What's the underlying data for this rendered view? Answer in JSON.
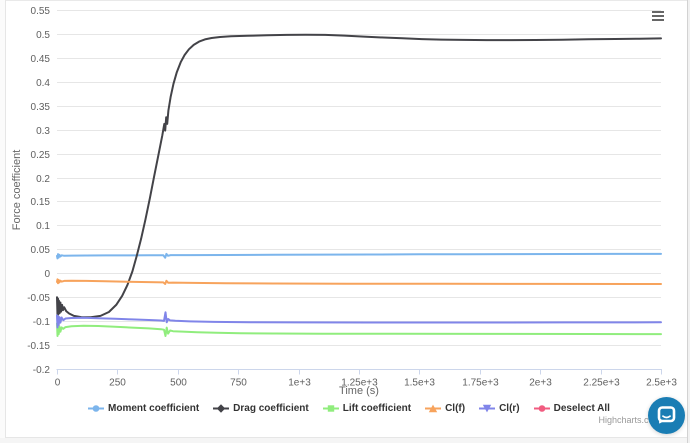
{
  "credits": {
    "label": "Highcharts.com"
  },
  "chat": {
    "color": "#1a7db4"
  },
  "chart_data": {
    "type": "line",
    "title": "",
    "xlabel": "Time (s)",
    "ylabel": "Force coefficient",
    "xlim": [
      0,
      2500
    ],
    "ylim": [
      -0.2,
      0.55
    ],
    "grid": "horizontal",
    "legend_position": "bottom",
    "x_ticks": {
      "values": [
        0,
        250,
        500,
        750,
        1000,
        1250,
        1500,
        1750,
        2000,
        2250,
        2500
      ],
      "labels": [
        "0",
        "250",
        "500",
        "750",
        "1e+3",
        "1.25e+3",
        "1.5e+3",
        "1.75e+3",
        "2e+3",
        "2.25e+3",
        "2.5e+3"
      ]
    },
    "y_ticks": {
      "values": [
        0.55,
        0.5,
        0.45,
        0.4,
        0.35,
        0.3,
        0.25,
        0.2,
        0.15,
        0.1,
        0.05,
        0,
        -0.05,
        -0.1,
        -0.15,
        -0.2
      ],
      "labels": [
        "0.55",
        "0.5",
        "0.45",
        "0.4",
        "0.35",
        "0.3",
        "0.25",
        "0.2",
        "0.15",
        "0.1",
        "0.05",
        "0",
        "-0.05",
        "-0.1",
        "-0.15",
        "-0.2"
      ]
    },
    "series": [
      {
        "name": "Moment coefficient",
        "color": "#7cb5ec",
        "symbol": "circle",
        "points": [
          [
            0,
            0.036
          ],
          [
            2,
            0.031
          ],
          [
            4,
            0.04
          ],
          [
            7,
            0.033
          ],
          [
            10,
            0.0385
          ],
          [
            14,
            0.035
          ],
          [
            20,
            0.0375
          ],
          [
            30,
            0.0365
          ],
          [
            60,
            0.037
          ],
          [
            120,
            0.0372
          ],
          [
            200,
            0.0373
          ],
          [
            300,
            0.0374
          ],
          [
            380,
            0.0375
          ],
          [
            440,
            0.0376
          ],
          [
            448,
            0.0325
          ],
          [
            453,
            0.0405
          ],
          [
            459,
            0.0365
          ],
          [
            470,
            0.038
          ],
          [
            550,
            0.0379
          ],
          [
            700,
            0.0382
          ],
          [
            900,
            0.0386
          ],
          [
            1100,
            0.039
          ],
          [
            1300,
            0.0393
          ],
          [
            1500,
            0.0396
          ],
          [
            1700,
            0.0398
          ],
          [
            1900,
            0.04
          ],
          [
            2100,
            0.0402
          ],
          [
            2300,
            0.0404
          ],
          [
            2500,
            0.0405
          ]
        ]
      },
      {
        "name": "Drag coefficient",
        "color": "#434348",
        "symbol": "diamond",
        "points": [
          [
            0,
            -0.05
          ],
          [
            2,
            -0.09
          ],
          [
            4,
            -0.053
          ],
          [
            6,
            -0.086
          ],
          [
            8,
            -0.057
          ],
          [
            11,
            -0.083
          ],
          [
            14,
            -0.061
          ],
          [
            17,
            -0.08
          ],
          [
            21,
            -0.066
          ],
          [
            25,
            -0.077
          ],
          [
            30,
            -0.071
          ],
          [
            38,
            -0.079
          ],
          [
            50,
            -0.084
          ],
          [
            70,
            -0.089
          ],
          [
            100,
            -0.0915
          ],
          [
            140,
            -0.092
          ],
          [
            180,
            -0.089
          ],
          [
            215,
            -0.081
          ],
          [
            245,
            -0.066
          ],
          [
            270,
            -0.047
          ],
          [
            292,
            -0.024
          ],
          [
            312,
            0.004
          ],
          [
            330,
            0.036
          ],
          [
            348,
            0.072
          ],
          [
            366,
            0.112
          ],
          [
            384,
            0.156
          ],
          [
            402,
            0.202
          ],
          [
            420,
            0.248
          ],
          [
            436,
            0.288
          ],
          [
            444,
            0.312
          ],
          [
            448,
            0.298
          ],
          [
            452,
            0.326
          ],
          [
            456,
            0.312
          ],
          [
            461,
            0.34
          ],
          [
            470,
            0.368
          ],
          [
            482,
            0.396
          ],
          [
            496,
            0.42
          ],
          [
            512,
            0.441
          ],
          [
            528,
            0.456
          ],
          [
            546,
            0.468
          ],
          [
            566,
            0.477
          ],
          [
            588,
            0.484
          ],
          [
            612,
            0.4885
          ],
          [
            640,
            0.4915
          ],
          [
            675,
            0.4935
          ],
          [
            720,
            0.495
          ],
          [
            790,
            0.4962
          ],
          [
            870,
            0.4972
          ],
          [
            950,
            0.498
          ],
          [
            1030,
            0.4985
          ],
          [
            1110,
            0.498
          ],
          [
            1190,
            0.4965
          ],
          [
            1270,
            0.4945
          ],
          [
            1350,
            0.4925
          ],
          [
            1430,
            0.4908
          ],
          [
            1510,
            0.4893
          ],
          [
            1590,
            0.4882
          ],
          [
            1680,
            0.4875
          ],
          [
            1780,
            0.4871
          ],
          [
            1880,
            0.4871
          ],
          [
            1980,
            0.4874
          ],
          [
            2090,
            0.488
          ],
          [
            2200,
            0.4887
          ],
          [
            2310,
            0.4894
          ],
          [
            2410,
            0.49
          ],
          [
            2500,
            0.4906
          ]
        ]
      },
      {
        "name": "Lift coefficient",
        "color": "#90ed7d",
        "symbol": "square",
        "points": [
          [
            0,
            -0.105
          ],
          [
            2,
            -0.131
          ],
          [
            4,
            -0.109
          ],
          [
            7,
            -0.127
          ],
          [
            10,
            -0.111
          ],
          [
            14,
            -0.122
          ],
          [
            19,
            -0.113
          ],
          [
            26,
            -0.116
          ],
          [
            35,
            -0.1125
          ],
          [
            60,
            -0.1108
          ],
          [
            110,
            -0.1095
          ],
          [
            170,
            -0.1102
          ],
          [
            240,
            -0.1118
          ],
          [
            310,
            -0.1135
          ],
          [
            380,
            -0.1152
          ],
          [
            430,
            -0.1168
          ],
          [
            443,
            -0.118
          ],
          [
            449,
            -0.131
          ],
          [
            454,
            -0.1135
          ],
          [
            460,
            -0.126
          ],
          [
            468,
            -0.1195
          ],
          [
            480,
            -0.121
          ],
          [
            520,
            -0.1218
          ],
          [
            580,
            -0.1232
          ],
          [
            660,
            -0.1243
          ],
          [
            760,
            -0.1252
          ],
          [
            900,
            -0.1258
          ],
          [
            1100,
            -0.1262
          ],
          [
            1400,
            -0.1265
          ],
          [
            1800,
            -0.1267
          ],
          [
            2200,
            -0.1268
          ],
          [
            2500,
            -0.127
          ]
        ]
      },
      {
        "name": "Cl(f)",
        "color": "#f7a35c",
        "symbol": "triangle",
        "points": [
          [
            0,
            -0.018
          ],
          [
            2,
            -0.0125
          ],
          [
            4,
            -0.021
          ],
          [
            7,
            -0.014
          ],
          [
            10,
            -0.019
          ],
          [
            14,
            -0.0155
          ],
          [
            20,
            -0.0175
          ],
          [
            30,
            -0.016
          ],
          [
            60,
            -0.0155
          ],
          [
            120,
            -0.016
          ],
          [
            200,
            -0.0168
          ],
          [
            290,
            -0.0176
          ],
          [
            380,
            -0.0184
          ],
          [
            440,
            -0.019
          ],
          [
            448,
            -0.0225
          ],
          [
            453,
            -0.0158
          ],
          [
            460,
            -0.0198
          ],
          [
            480,
            -0.0195
          ],
          [
            560,
            -0.0202
          ],
          [
            700,
            -0.0209
          ],
          [
            900,
            -0.0214
          ],
          [
            1200,
            -0.0218
          ],
          [
            1600,
            -0.0221
          ],
          [
            2000,
            -0.0223
          ],
          [
            2500,
            -0.0225
          ]
        ]
      },
      {
        "name": "Cl(r)",
        "color": "#8085e9",
        "symbol": "triangle-down",
        "points": [
          [
            0,
            -0.088
          ],
          [
            2,
            -0.113
          ],
          [
            4,
            -0.09
          ],
          [
            7,
            -0.108
          ],
          [
            10,
            -0.0915
          ],
          [
            14,
            -0.103
          ],
          [
            19,
            -0.0925
          ],
          [
            26,
            -0.098
          ],
          [
            35,
            -0.0945
          ],
          [
            60,
            -0.0935
          ],
          [
            110,
            -0.093
          ],
          [
            170,
            -0.0938
          ],
          [
            240,
            -0.095
          ],
          [
            310,
            -0.0963
          ],
          [
            380,
            -0.0976
          ],
          [
            430,
            -0.0986
          ],
          [
            443,
            -0.0995
          ],
          [
            449,
            -0.0815
          ],
          [
            454,
            -0.1025
          ],
          [
            460,
            -0.0955
          ],
          [
            468,
            -0.0985
          ],
          [
            490,
            -0.0992
          ],
          [
            550,
            -0.1005
          ],
          [
            650,
            -0.1015
          ],
          [
            800,
            -0.1022
          ],
          [
            1000,
            -0.1027
          ],
          [
            1300,
            -0.1029
          ],
          [
            1700,
            -0.1029
          ],
          [
            2100,
            -0.1027
          ],
          [
            2500,
            -0.1025
          ]
        ]
      },
      {
        "name": "Deselect All",
        "color": "#f15c80",
        "symbol": "circle",
        "points": []
      }
    ]
  }
}
